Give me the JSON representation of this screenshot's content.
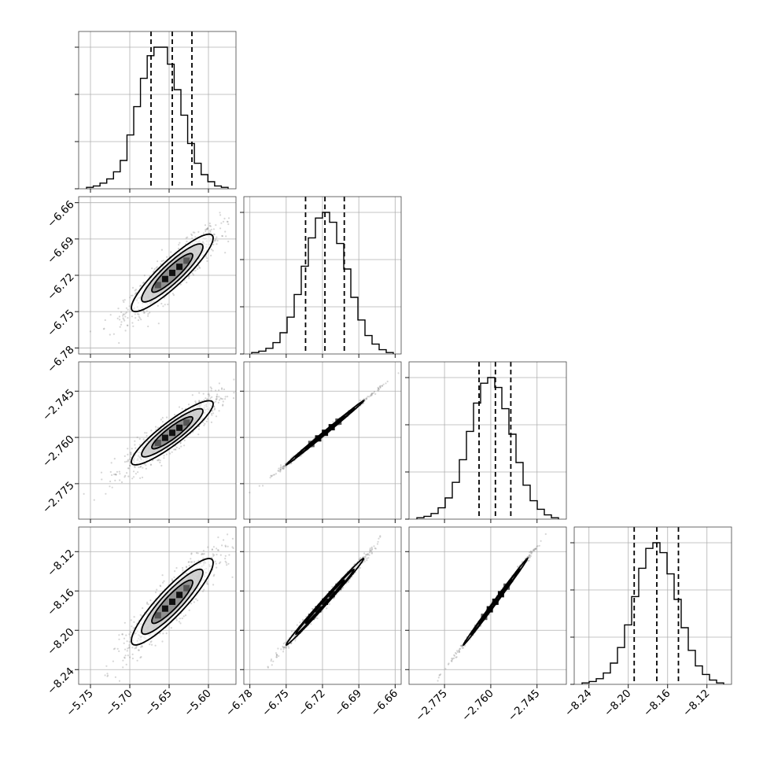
{
  "chart_data": {
    "type": "corner",
    "grid": true,
    "parameters": [
      {
        "range": [
          -5.765,
          -5.565
        ],
        "ticks": [
          -5.75,
          -5.7,
          -5.65,
          -5.6
        ],
        "tick_labels": [
          "−5.75",
          "−5.70",
          "−5.65",
          "−5.60"
        ],
        "mean": -5.646,
        "std": 0.026,
        "quantiles": [
          -5.673,
          -5.646,
          -5.621
        ],
        "histogram_counts": [
          1,
          2,
          4,
          7,
          12,
          20,
          38,
          58,
          78,
          94,
          100,
          100,
          88,
          70,
          52,
          32,
          18,
          10,
          5,
          2,
          1
        ]
      },
      {
        "range": [
          -6.785,
          -6.655
        ],
        "ticks": [
          -6.78,
          -6.75,
          -6.72,
          -6.69,
          -6.66
        ],
        "tick_labels": [
          "−6.78",
          "−6.75",
          "−6.72",
          "−6.69",
          "−6.66"
        ],
        "mean": -6.718,
        "std": 0.016,
        "quantiles": [
          -6.734,
          -6.718,
          -6.702
        ],
        "histogram_counts": [
          1,
          2,
          4,
          8,
          15,
          26,
          42,
          62,
          82,
          96,
          100,
          93,
          78,
          60,
          40,
          24,
          13,
          7,
          3,
          1
        ]
      },
      {
        "range": [
          -2.7865,
          -2.7355
        ],
        "ticks": [
          -2.775,
          -2.76,
          -2.745
        ],
        "tick_labels": [
          "−2.775",
          "−2.760",
          "−2.745"
        ],
        "mean": -2.7585,
        "std": 0.0052,
        "quantiles": [
          -2.7638,
          -2.7585,
          -2.7535
        ],
        "histogram_counts": [
          1,
          2,
          4,
          8,
          15,
          26,
          42,
          62,
          82,
          96,
          100,
          93,
          78,
          60,
          40,
          24,
          13,
          7,
          3,
          1
        ]
      },
      {
        "range": [
          -8.255,
          -8.095
        ],
        "ticks": [
          -8.24,
          -8.2,
          -8.16,
          -8.12
        ],
        "tick_labels": [
          "−8.24",
          "−8.20",
          "−8.16",
          "−8.12"
        ],
        "mean": -8.171,
        "std": 0.022,
        "quantiles": [
          -8.194,
          -8.171,
          -8.149
        ],
        "histogram_counts": [
          1,
          2,
          4,
          8,
          15,
          26,
          42,
          62,
          82,
          96,
          100,
          93,
          78,
          60,
          40,
          24,
          13,
          7,
          3,
          1
        ]
      }
    ],
    "correlations": {
      "1_0": 0.9,
      "2_0": 0.9,
      "3_0": 0.9,
      "2_1": 0.998,
      "3_1": 0.995,
      "3_2": 0.998
    },
    "contour_levels_sigma": [
      1,
      1.5,
      2
    ],
    "colors": {
      "points": "#8a8a8a",
      "lines": "#000000",
      "grid": "#b0b0b0"
    }
  }
}
